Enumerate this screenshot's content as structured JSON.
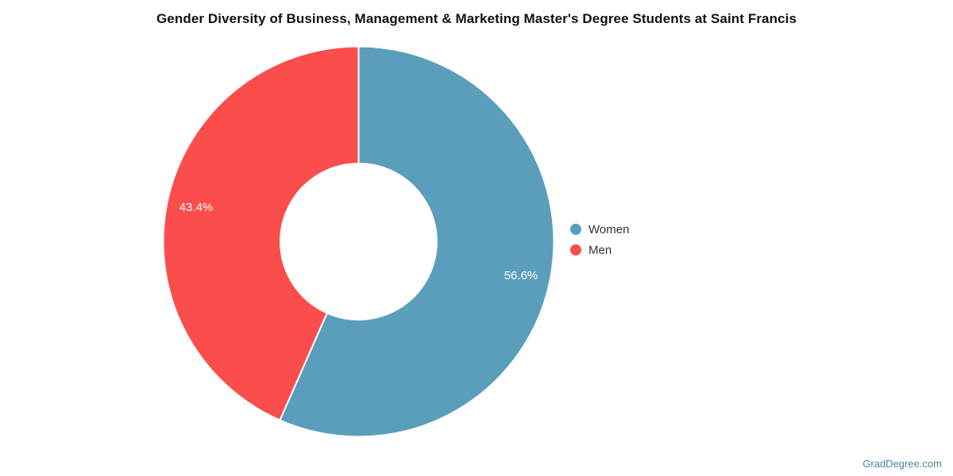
{
  "watermark": {
    "text": "GradDegree.com",
    "color": "#53809F"
  },
  "chart_data": {
    "type": "pie",
    "title": "Gender Diversity of Business, Management & Marketing Master's Degree Students at Saint Francis",
    "labels": [
      "Women",
      "Men"
    ],
    "values": [
      56.6,
      43.4
    ],
    "value_labels": [
      "56.6%",
      "43.4%"
    ],
    "colors": [
      "#5B9EBC",
      "#FC4D4D"
    ],
    "donut": true,
    "inner_radius_ratio": 0.4,
    "start_angle_deg": 0,
    "direction": "clockwise",
    "legend_position": "right",
    "slice_label_color": "#FFFFFF",
    "slice_border_color": "#FFFFFF",
    "background": "#FFFFFF"
  }
}
